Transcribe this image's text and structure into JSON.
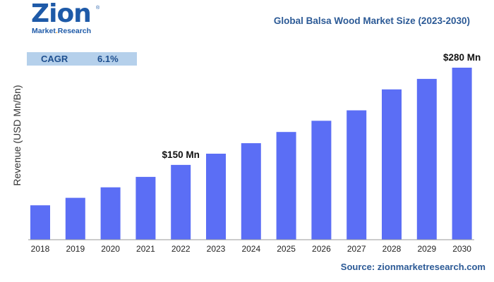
{
  "logo": {
    "main": "Zion",
    "reg": "®",
    "sub_1": "Market",
    "sub_dot": ".",
    "sub_2": "Research"
  },
  "title": "Global Balsa Wood Market Size (2023-2030)",
  "cagr": {
    "label": "CAGR",
    "value": "6.1%"
  },
  "source": "Source: zionmarketresearch.com",
  "colors": {
    "bar": "#5b6ef5",
    "title": "#2c5a96",
    "cagr_box": "#b5d0eb"
  },
  "chart_data": {
    "type": "bar",
    "categories": [
      "2018",
      "2019",
      "2020",
      "2021",
      "2022",
      "2023",
      "2024",
      "2025",
      "2026",
      "2027",
      "2028",
      "2029",
      "2030"
    ],
    "values": [
      96,
      106,
      120,
      134,
      150,
      165,
      179,
      194,
      209,
      223,
      251,
      265,
      280
    ],
    "ylabel": "Revenue (USD Mn/Bn)",
    "xlabel": "",
    "ylim": [
      50,
      280
    ],
    "annotations": [
      {
        "category": "2022",
        "text": "$150 Mn"
      },
      {
        "category": "2030",
        "text": "$280 Mn"
      }
    ],
    "grid": false,
    "legend": "none"
  }
}
